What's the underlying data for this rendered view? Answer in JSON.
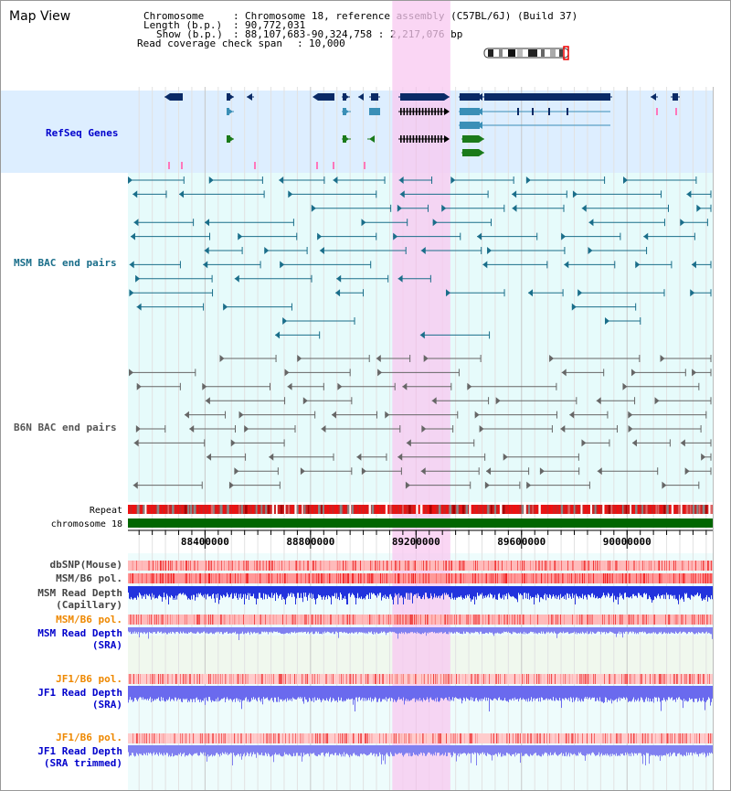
{
  "panel_title": "Map View",
  "header": {
    "chromosome_key": "Chromosome",
    "chromosome_val": "Chromosome 18, reference assembly (C57BL/6J) (Build 37)",
    "length_key": "Length (b.p.)",
    "length_val": "90,772,031",
    "show_key": "Show (b.p.)",
    "show_val": "88,107,683-90,324,758 : 2,217,076 bp",
    "span_key": "Read coverage check span",
    "span_val": "10,000"
  },
  "tracks": {
    "refseq": "RefSeq Genes",
    "msm_bac": "MSM BAC end pairs",
    "b6n_bac": "B6N BAC end pairs",
    "repeat": "Repeat",
    "chromosome": "chromosome 18",
    "dbsnp": "dbSNP(Mouse)",
    "msm_b6_pol_1": "MSM/B6 pol.",
    "msm_depth_cap_1": "MSM Read Depth",
    "msm_depth_cap_2": "(Capillary)",
    "msm_b6_pol_2": "MSM/B6 pol.",
    "msm_depth_sra_1": "MSM Read Depth",
    "msm_depth_sra_2": "(SRA)",
    "jf1_pol_1": "JF1/B6 pol.",
    "jf1_depth_1": "JF1 Read Depth",
    "jf1_depth_2": "(SRA)",
    "jf1_pol_2": "JF1/B6 pol.",
    "jf1_trim_1": "JF1 Read Depth",
    "jf1_trim_2": "(SRA trimmed)"
  },
  "axis": {
    "start": 88107683,
    "end": 90324758,
    "ticks": [
      "88400000",
      "88800000",
      "89200000",
      "89600000",
      "90000000"
    ]
  },
  "highlight": {
    "start": 89110000,
    "end": 89330000
  },
  "colors": {
    "refseq_bg": "#ddeeff",
    "bac_bg": "#e6fbfb",
    "highlight": "#f8c8f0",
    "gene_dark": "#0a2a66",
    "gene_mid": "#3a8fb7",
    "gene_green": "#1a7a1a",
    "msm_label": "#1a6e8a",
    "b6n_label": "#555555",
    "blue_label": "#0000cc",
    "orange_label": "#ee8800",
    "depth_dark": "#2233dd",
    "depth_light": "#8080f0",
    "chrom_green": "#006600"
  }
}
